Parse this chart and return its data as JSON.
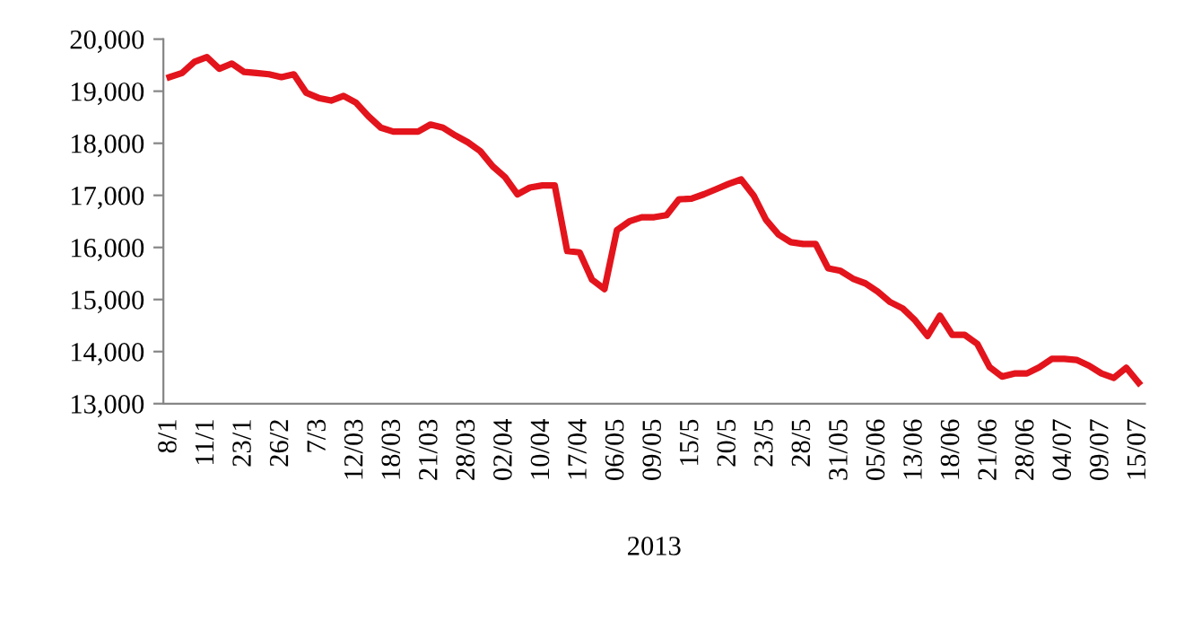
{
  "chart_data": {
    "type": "line",
    "xlabel": "2013",
    "categories": [
      "8/1",
      null,
      null,
      "11/1",
      null,
      null,
      "23/1",
      null,
      null,
      "26/2",
      null,
      null,
      "7/3",
      null,
      null,
      "12/03",
      null,
      null,
      "18/03",
      null,
      null,
      "21/03",
      null,
      null,
      "28/03",
      null,
      null,
      "02/04",
      null,
      null,
      "10/04",
      null,
      null,
      "17/04",
      null,
      null,
      "06/05",
      null,
      null,
      "09/05",
      null,
      null,
      "15/5",
      null,
      null,
      "20/5",
      null,
      null,
      "23/5",
      null,
      null,
      "28/5",
      null,
      null,
      "31/05",
      null,
      null,
      "05/06",
      null,
      null,
      "13/06",
      null,
      null,
      "18/06",
      null,
      null,
      "21/06",
      null,
      null,
      "28/06",
      null,
      null,
      "04/07",
      null,
      null,
      "09/07",
      null,
      null,
      "15/07"
    ],
    "series": [
      {
        "color": "#e3141c",
        "values": [
          19270,
          19350,
          19565,
          19655,
          19430,
          19530,
          19370,
          19350,
          19325,
          19270,
          19325,
          18970,
          18870,
          18820,
          18910,
          18780,
          18520,
          18300,
          18225,
          18225,
          18225,
          18360,
          18300,
          18150,
          18020,
          17850,
          17560,
          17350,
          17020,
          17150,
          17190,
          17190,
          15930,
          15905,
          15380,
          15200,
          16330,
          16500,
          16580,
          16580,
          16620,
          16925,
          16935,
          17020,
          17120,
          17220,
          17305,
          17000,
          16530,
          16250,
          16100,
          16065,
          16065,
          15600,
          15550,
          15400,
          15310,
          15150,
          14950,
          14830,
          14600,
          14300,
          14690,
          14320,
          14320,
          14150,
          13700,
          13520,
          13580,
          13580,
          13700,
          13860,
          13860,
          13840,
          13730,
          13580,
          13495,
          13690,
          13400
        ]
      }
    ],
    "ylim": [
      13000,
      20000
    ],
    "yticks": [
      {
        "value": 13000,
        "label": "13,000"
      },
      {
        "value": 14000,
        "label": "14,000"
      },
      {
        "value": 15000,
        "label": "15,000"
      },
      {
        "value": 16000,
        "label": "16,000"
      },
      {
        "value": 17000,
        "label": "17,000"
      },
      {
        "value": 18000,
        "label": "18,000"
      },
      {
        "value": 19000,
        "label": "19,000"
      },
      {
        "value": 20000,
        "label": "20,000"
      }
    ],
    "grid": false,
    "legend": false,
    "marker": "none",
    "line_style": "solid"
  }
}
